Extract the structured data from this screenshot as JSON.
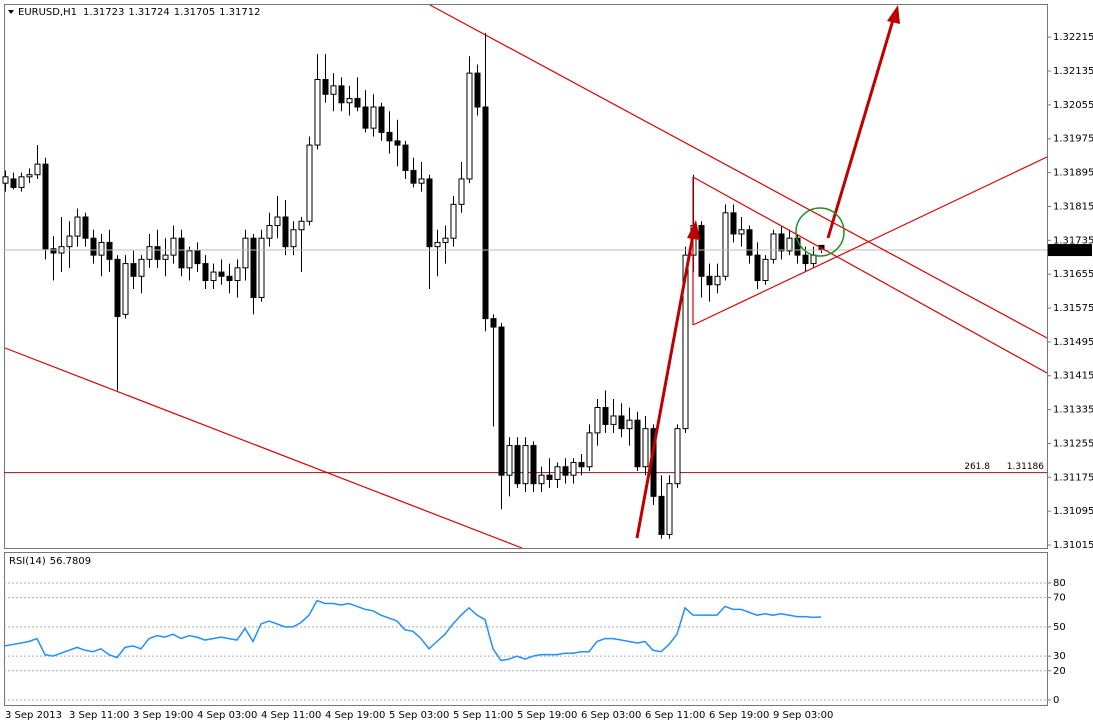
{
  "chart_data": [
    {
      "type": "candlestick",
      "title": "EURUSD,H1",
      "categories": [
        "3 Sep 2013",
        null,
        null,
        null,
        null,
        null,
        null,
        null,
        "3 Sep 11:00",
        null,
        null,
        null,
        null,
        null,
        null,
        null,
        "3 Sep 19:00",
        null,
        null,
        null,
        null,
        null,
        null,
        null,
        "4 Sep 03:00",
        null,
        null,
        null,
        null,
        null,
        null,
        null,
        "4 Sep 11:00",
        null,
        null,
        null,
        null,
        null,
        null,
        null,
        "4 Sep 19:00",
        null,
        null,
        null,
        null,
        null,
        null,
        null,
        "5 Sep 03:00",
        null,
        null,
        null,
        null,
        null,
        null,
        null,
        "5 Sep 11:00",
        null,
        null,
        null,
        null,
        null,
        null,
        null,
        "5 Sep 19:00",
        null,
        null,
        null,
        null,
        null,
        null,
        null,
        "6 Sep 03:00",
        null,
        null,
        null,
        null,
        null,
        null,
        null,
        "6 Sep 11:00",
        null,
        null,
        null,
        null,
        null,
        null,
        null,
        "6 Sep 19:00",
        null,
        null,
        null,
        null,
        null,
        null,
        null,
        "9 Sep 03:00",
        null,
        null,
        null,
        null,
        null,
        null
      ],
      "candles": [
        [
          1.3187,
          1.319,
          1.3185,
          1.31885
        ],
        [
          1.3188,
          1.31895,
          1.31855,
          1.3186
        ],
        [
          1.3186,
          1.31895,
          1.3185,
          1.31885
        ],
        [
          1.31885,
          1.31905,
          1.3187,
          1.3189
        ],
        [
          1.3189,
          1.3196,
          1.3188,
          1.31915
        ],
        [
          1.31915,
          1.3193,
          1.3169,
          1.31715
        ],
        [
          1.31715,
          1.31745,
          1.3164,
          1.31705
        ],
        [
          1.31705,
          1.3179,
          1.3166,
          1.3172
        ],
        [
          1.3172,
          1.3178,
          1.3167,
          1.31745
        ],
        [
          1.31745,
          1.3181,
          1.3172,
          1.3179
        ],
        [
          1.3179,
          1.318,
          1.3172,
          1.3174
        ],
        [
          1.3174,
          1.3176,
          1.3168,
          1.317
        ],
        [
          1.317,
          1.3175,
          1.3165,
          1.3173
        ],
        [
          1.3173,
          1.3176,
          1.3166,
          1.3169
        ],
        [
          1.3169,
          1.317,
          1.3138,
          1.31555
        ],
        [
          1.3156,
          1.317,
          1.3155,
          1.3168
        ],
        [
          1.3168,
          1.3171,
          1.3162,
          1.3165
        ],
        [
          1.3165,
          1.317,
          1.3161,
          1.3169
        ],
        [
          1.3169,
          1.3175,
          1.3167,
          1.3172
        ],
        [
          1.3172,
          1.3176,
          1.3167,
          1.3169
        ],
        [
          1.3169,
          1.3174,
          1.3165,
          1.317
        ],
        [
          1.317,
          1.3177,
          1.3168,
          1.3174
        ],
        [
          1.3174,
          1.3176,
          1.3165,
          1.3167
        ],
        [
          1.3167,
          1.3172,
          1.3164,
          1.3171
        ],
        [
          1.3171,
          1.3173,
          1.3166,
          1.3168
        ],
        [
          1.3168,
          1.317,
          1.3162,
          1.3164
        ],
        [
          1.3164,
          1.3168,
          1.3162,
          1.3166
        ],
        [
          1.3166,
          1.3169,
          1.3163,
          1.3165
        ],
        [
          1.3165,
          1.3168,
          1.3161,
          1.3164
        ],
        [
          1.3164,
          1.3169,
          1.316,
          1.3167
        ],
        [
          1.3167,
          1.3176,
          1.3164,
          1.3174
        ],
        [
          1.3174,
          1.3175,
          1.3156,
          1.316
        ],
        [
          1.316,
          1.3176,
          1.3159,
          1.3174
        ],
        [
          1.3174,
          1.318,
          1.3172,
          1.3177
        ],
        [
          1.3177,
          1.3184,
          1.3174,
          1.3179
        ],
        [
          1.3179,
          1.3183,
          1.317,
          1.3172
        ],
        [
          1.3172,
          1.3178,
          1.317,
          1.3176
        ],
        [
          1.3176,
          1.3179,
          1.3166,
          1.3178
        ],
        [
          1.3178,
          1.3198,
          1.3177,
          1.3196
        ],
        [
          1.3196,
          1.32175,
          1.3195,
          1.32115
        ],
        [
          1.32115,
          1.32175,
          1.3206,
          1.3208
        ],
        [
          1.3208,
          1.3213,
          1.3204,
          1.321
        ],
        [
          1.321,
          1.3212,
          1.3204,
          1.3206
        ],
        [
          1.3206,
          1.321,
          1.3203,
          1.3207
        ],
        [
          1.3207,
          1.3212,
          1.3204,
          1.3205
        ],
        [
          1.3205,
          1.3209,
          1.3199,
          1.32
        ],
        [
          1.32,
          1.3208,
          1.3198,
          1.3205
        ],
        [
          1.3205,
          1.3206,
          1.3197,
          1.3199
        ],
        [
          1.3199,
          1.3204,
          1.3194,
          1.3197
        ],
        [
          1.3197,
          1.3202,
          1.3191,
          1.3196
        ],
        [
          1.3196,
          1.3197,
          1.3188,
          1.319
        ],
        [
          1.319,
          1.3193,
          1.3186,
          1.3187
        ],
        [
          1.3187,
          1.3192,
          1.3185,
          1.3188
        ],
        [
          1.3188,
          1.3189,
          1.3162,
          1.3172
        ],
        [
          1.3172,
          1.3176,
          1.3165,
          1.3173
        ],
        [
          1.3173,
          1.3177,
          1.3168,
          1.3174
        ],
        [
          1.3174,
          1.3184,
          1.3172,
          1.3182
        ],
        [
          1.3182,
          1.3192,
          1.318,
          1.3188
        ],
        [
          1.3188,
          1.3217,
          1.3187,
          1.3213
        ],
        [
          1.3213,
          1.3215,
          1.3203,
          1.3205
        ],
        [
          1.3205,
          1.32225,
          1.3152,
          1.3155
        ],
        [
          1.3155,
          1.3156,
          1.31295,
          1.3153
        ],
        [
          1.3153,
          1.3154,
          1.311,
          1.3118
        ],
        [
          1.3118,
          1.3127,
          1.3113,
          1.3125
        ],
        [
          1.3125,
          1.3127,
          1.3115,
          1.3116
        ],
        [
          1.3116,
          1.3127,
          1.3114,
          1.3125
        ],
        [
          1.3125,
          1.3126,
          1.3114,
          1.3116
        ],
        [
          1.3116,
          1.312,
          1.3114,
          1.3118
        ],
        [
          1.3118,
          1.3122,
          1.3115,
          1.3117
        ],
        [
          1.3117,
          1.3121,
          1.3115,
          1.312
        ],
        [
          1.312,
          1.3122,
          1.3116,
          1.3118
        ],
        [
          1.3118,
          1.3122,
          1.3116,
          1.3121
        ],
        [
          1.3121,
          1.3123,
          1.3118,
          1.312
        ],
        [
          1.312,
          1.313,
          1.3119,
          1.3128
        ],
        [
          1.3128,
          1.3136,
          1.3125,
          1.3134
        ],
        [
          1.3134,
          1.3138,
          1.3128,
          1.313
        ],
        [
          1.313,
          1.3136,
          1.3128,
          1.3132
        ],
        [
          1.3132,
          1.3135,
          1.3127,
          1.3129
        ],
        [
          1.3129,
          1.3134,
          1.3125,
          1.3131
        ],
        [
          1.3131,
          1.3133,
          1.3119,
          1.312
        ],
        [
          1.312,
          1.3132,
          1.3118,
          1.3129
        ],
        [
          1.3129,
          1.313,
          1.3111,
          1.3113
        ],
        [
          1.3113,
          1.3118,
          1.3103,
          1.3104
        ],
        [
          1.3104,
          1.3118,
          1.3103,
          1.3116
        ],
        [
          1.3116,
          1.313,
          1.3115,
          1.3129
        ],
        [
          1.3129,
          1.3172,
          1.3128,
          1.317
        ],
        [
          1.317,
          1.3189,
          1.3166,
          1.3177
        ],
        [
          1.3177,
          1.3178,
          1.316,
          1.3165
        ],
        [
          1.3165,
          1.3168,
          1.3159,
          1.3163
        ],
        [
          1.3163,
          1.3168,
          1.3161,
          1.3165
        ],
        [
          1.3165,
          1.3182,
          1.3164,
          1.318
        ],
        [
          1.318,
          1.3182,
          1.3173,
          1.3175
        ],
        [
          1.3175,
          1.3179,
          1.3172,
          1.3176
        ],
        [
          1.3176,
          1.3177,
          1.3168,
          1.317
        ],
        [
          1.317,
          1.3173,
          1.3162,
          1.3164
        ],
        [
          1.3164,
          1.317,
          1.3163,
          1.3169
        ],
        [
          1.3169,
          1.3176,
          1.3168,
          1.3175
        ],
        [
          1.3175,
          1.3177,
          1.3169,
          1.3171
        ],
        [
          1.3171,
          1.3176,
          1.317,
          1.3174
        ],
        [
          1.3174,
          1.3175,
          1.3168,
          1.317
        ],
        [
          1.317,
          1.3172,
          1.3166,
          1.3168
        ],
        [
          1.3168,
          1.3172,
          1.3167,
          1.317
        ],
        [
          1.31723,
          1.31724,
          1.31705,
          1.31712
        ]
      ],
      "bull_color": "#ffffff",
      "bear_color": "#000000",
      "outline_color": "#000000",
      "ylim": [
        1.31008,
        1.32291
      ],
      "yticks": [
        1.32215,
        1.32135,
        1.32055,
        1.31975,
        1.31895,
        1.31815,
        1.31735,
        1.31655,
        1.31575,
        1.31495,
        1.31415,
        1.31335,
        1.31255,
        1.31175,
        1.31095,
        1.31015
      ],
      "levels": [
        {
          "label": "261.8",
          "value": 1.31186,
          "color": "#8b1a1a"
        }
      ],
      "grid": false
    },
    {
      "type": "line",
      "title": "RSI(14)",
      "color": "#1e90ff",
      "values": [
        37,
        38,
        39,
        40,
        42,
        31,
        30,
        32,
        34,
        36,
        34,
        33,
        35,
        31,
        29,
        36,
        37,
        35,
        42,
        44,
        43,
        45,
        42,
        44,
        43,
        41,
        42,
        43,
        42,
        41,
        49,
        40,
        52,
        54,
        52,
        50,
        50,
        53,
        58,
        68,
        66,
        66,
        65,
        66,
        64,
        62,
        61,
        58,
        56,
        54,
        48,
        47,
        42,
        35,
        40,
        45,
        52,
        58,
        63,
        58,
        55,
        35,
        27,
        28,
        30,
        28,
        30,
        31,
        31,
        31,
        32,
        32,
        33,
        33,
        40,
        42,
        42,
        41,
        40,
        39,
        40,
        34,
        33,
        38,
        45,
        63,
        58,
        58,
        58,
        58,
        64,
        62,
        62,
        60,
        58,
        59,
        58,
        59,
        58,
        57,
        57,
        56.5,
        56.7809
      ],
      "ylim": [
        -3.4,
        100.5
      ],
      "yticks": [
        80,
        70,
        50,
        30,
        20,
        0
      ],
      "grid": true
    }
  ]
}
